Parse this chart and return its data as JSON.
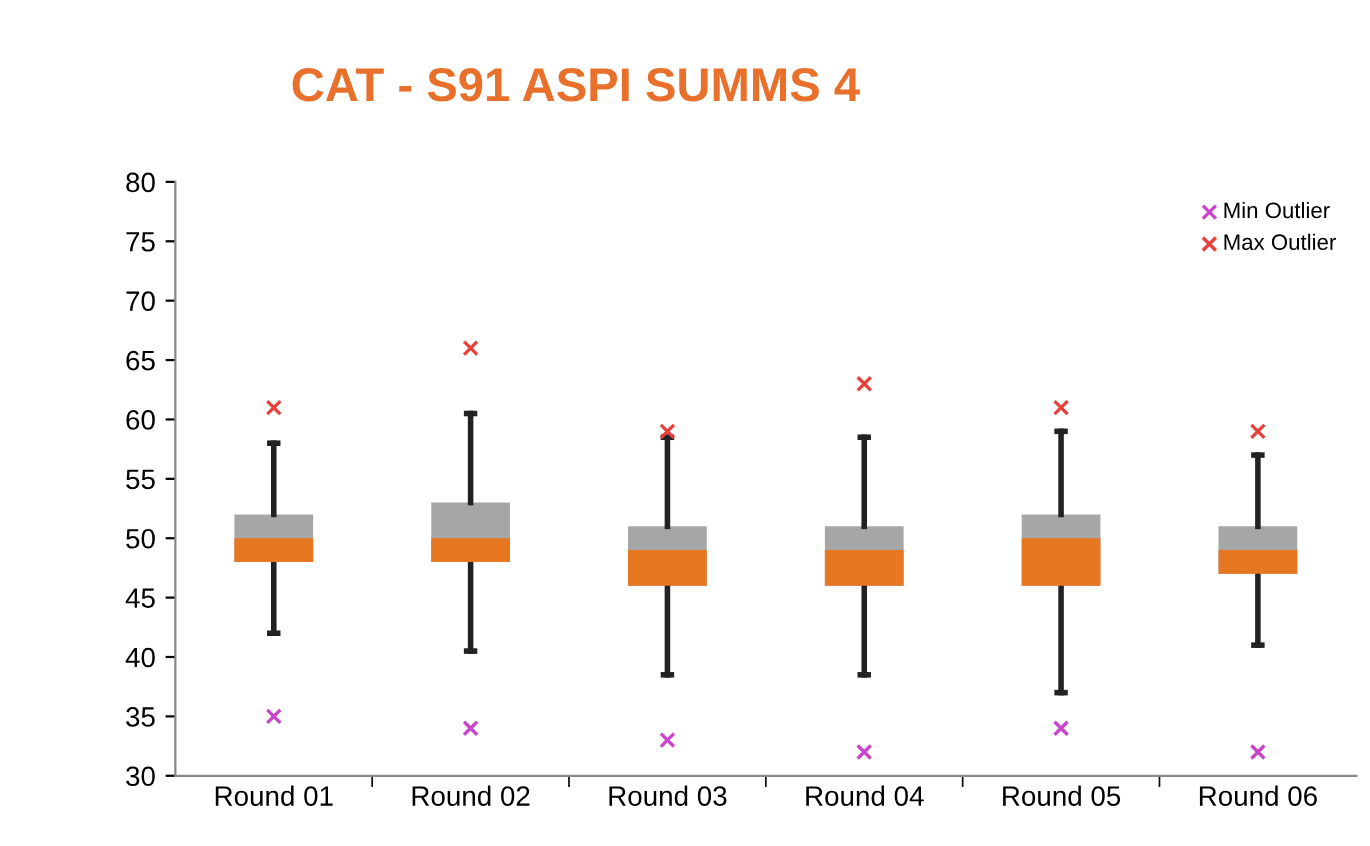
{
  "chart_data": {
    "type": "box",
    "title": "CAT - S91 ASPI SUMMS 4",
    "categories": [
      "Round 01",
      "Round 02",
      "Round 03",
      "Round 04",
      "Round 05",
      "Round 06"
    ],
    "ylim": [
      30,
      80
    ],
    "yticks": [
      30,
      35,
      40,
      45,
      50,
      55,
      60,
      65,
      70,
      75,
      80
    ],
    "grid": false,
    "legend": "top right",
    "series": [
      {
        "color": "#a6a6a6",
        "colors": [
          "#e87722",
          "#e87722",
          "#e87722",
          "#e87722",
          "#e87722",
          "#e87722"
        ],
        "boxes": [
          {
            "low": 42,
            "q1": 48,
            "median": 50,
            "q3": 52,
            "high": 58
          },
          {
            "low": 40.5,
            "q1": 48,
            "median": 50,
            "q3": 53,
            "high": 60.5
          },
          {
            "low": 38.5,
            "q1": 46,
            "median": 49,
            "q3": 51,
            "high": 58.5
          },
          {
            "low": 38.5,
            "q1": 46,
            "median": 49,
            "q3": 51,
            "high": 58.5
          },
          {
            "low": 37,
            "q1": 46,
            "median": 50,
            "q3": 52,
            "high": 59
          },
          {
            "low": 41,
            "q1": 47,
            "median": 49,
            "q3": 51,
            "high": 57
          }
        ]
      },
      {
        "type": "scatter",
        "name": "Min Outlier",
        "color": "#cc44cc",
        "marker": "cross",
        "x": [
          "Round 01",
          "Round 02",
          "Round 03",
          "Round 04",
          "Round 05",
          "Round 06"
        ],
        "values": [
          35,
          34,
          33,
          32,
          34,
          32
        ]
      },
      {
        "type": "scatter",
        "name": "Max Outlier",
        "color": "#e8403a",
        "marker": "cross",
        "x": [
          "Round 01",
          "Round 02",
          "Round 03",
          "Round 04",
          "Round 05",
          "Round 06"
        ],
        "values": [
          61,
          66,
          59,
          63,
          61,
          59
        ]
      }
    ]
  }
}
